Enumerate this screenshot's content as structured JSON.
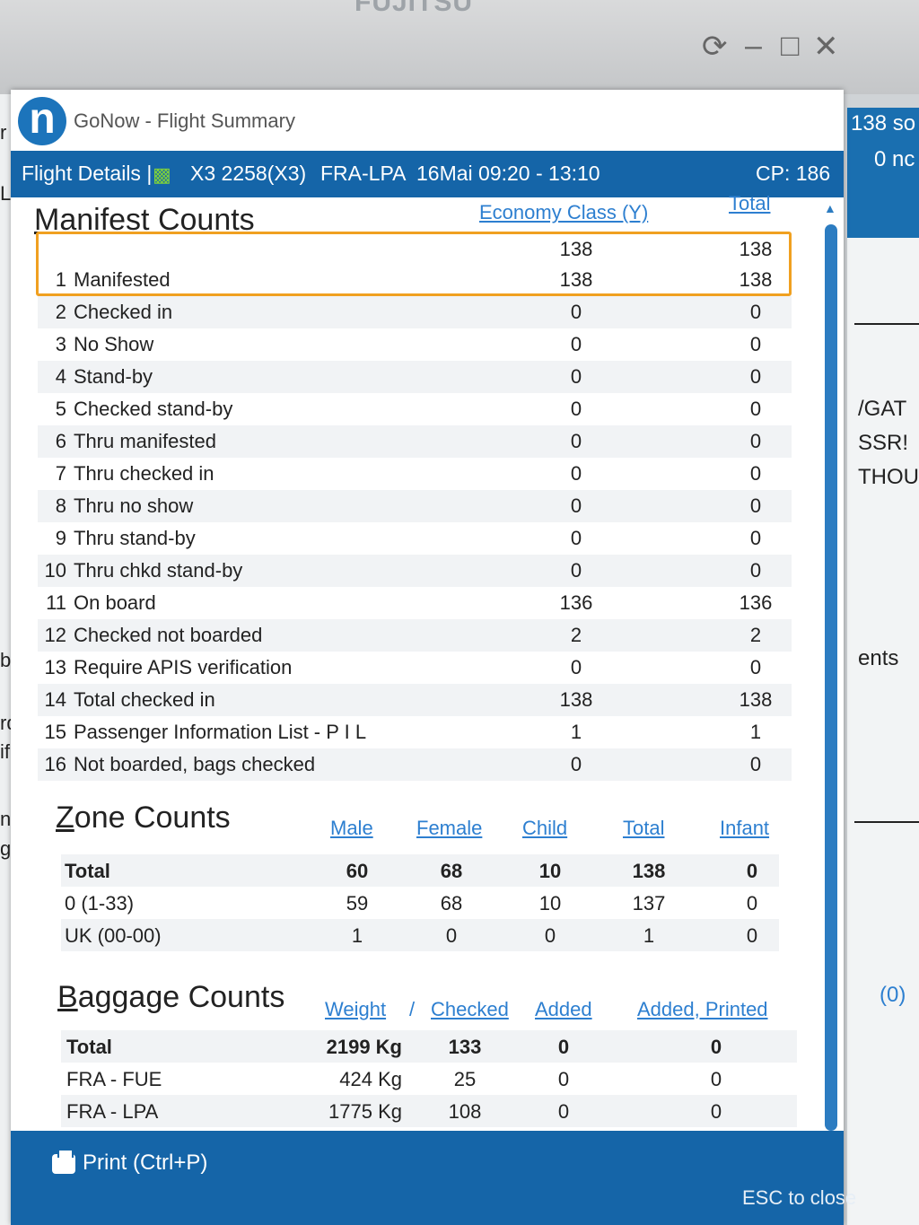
{
  "brand": "FUJITSU",
  "window": {
    "app_title": "GoNow - Flight Summary",
    "controls": {
      "restore": "⟳",
      "minimize": "–",
      "maximize": "□",
      "close": "✕"
    }
  },
  "flight_bar": {
    "details_label": "Flight Details |",
    "flight_number": "X3 2258(X3)",
    "route": "FRA-LPA",
    "schedule": "16Mai 09:20 - 13:10",
    "cp": "CP: 186"
  },
  "manifest": {
    "title": "Manifest Counts",
    "col_class": "Economy Class (Y)",
    "col_total": "Total",
    "header_values": {
      "class": "138",
      "total": "138"
    },
    "rows": [
      {
        "num": "1",
        "label": "Manifested",
        "class": "138",
        "total": "138"
      },
      {
        "num": "2",
        "label": "Checked in",
        "class": "0",
        "total": "0"
      },
      {
        "num": "3",
        "label": "No Show",
        "class": "0",
        "total": "0"
      },
      {
        "num": "4",
        "label": "Stand-by",
        "class": "0",
        "total": "0"
      },
      {
        "num": "5",
        "label": "Checked stand-by",
        "class": "0",
        "total": "0"
      },
      {
        "num": "6",
        "label": "Thru manifested",
        "class": "0",
        "total": "0"
      },
      {
        "num": "7",
        "label": "Thru checked in",
        "class": "0",
        "total": "0"
      },
      {
        "num": "8",
        "label": "Thru no show",
        "class": "0",
        "total": "0"
      },
      {
        "num": "9",
        "label": "Thru stand-by",
        "class": "0",
        "total": "0"
      },
      {
        "num": "10",
        "label": "Thru chkd stand-by",
        "class": "0",
        "total": "0"
      },
      {
        "num": "11",
        "label": "On board",
        "class": "136",
        "total": "136"
      },
      {
        "num": "12",
        "label": "Checked not boarded",
        "class": "2",
        "total": "2"
      },
      {
        "num": "13",
        "label": "Require APIS verification",
        "class": "0",
        "total": "0"
      },
      {
        "num": "14",
        "label": "Total checked in",
        "class": "138",
        "total": "138"
      },
      {
        "num": "15",
        "label": "Passenger Information List - P I L",
        "class": "1",
        "total": "1"
      },
      {
        "num": "16",
        "label": "Not boarded, bags checked",
        "class": "0",
        "total": "0"
      }
    ]
  },
  "zone": {
    "title": "Zone Counts",
    "headers": [
      "Male",
      "Female",
      "Child",
      "Total",
      "Infant"
    ],
    "rows": [
      {
        "label": "Total",
        "values": [
          "60",
          "68",
          "10",
          "138",
          "0"
        ]
      },
      {
        "label": "0 (1-33)",
        "values": [
          "59",
          "68",
          "10",
          "137",
          "0"
        ]
      },
      {
        "label": "UK (00-00)",
        "values": [
          "1",
          "0",
          "0",
          "1",
          "0"
        ]
      }
    ]
  },
  "baggage": {
    "title": "Baggage Counts",
    "headers": {
      "weight": "Weight",
      "sep": "/",
      "checked": "Checked",
      "added": "Added",
      "added_printed": "Added, Printed"
    },
    "rows": [
      {
        "label": "Total",
        "weight": "2199 Kg",
        "checked": "133",
        "added": "0",
        "added_printed": "0"
      },
      {
        "label": "FRA - FUE",
        "weight": "424 Kg",
        "checked": "25",
        "added": "0",
        "added_printed": "0"
      },
      {
        "label": "FRA - LPA",
        "weight": "1775 Kg",
        "checked": "108",
        "added": "0",
        "added_printed": "0"
      }
    ]
  },
  "footer": {
    "print_label": "Print (Ctrl+P)",
    "esc_label": "ESC to close"
  },
  "background_fragments": {
    "left": [
      "r",
      "L",
      "by",
      "rde",
      "ific",
      "nat",
      "gs ("
    ],
    "right_head": [
      "138 so",
      "0 nc"
    ],
    "right": [
      "/GAT",
      "SSR!",
      "THOU",
      "ents",
      "(0)"
    ]
  }
}
